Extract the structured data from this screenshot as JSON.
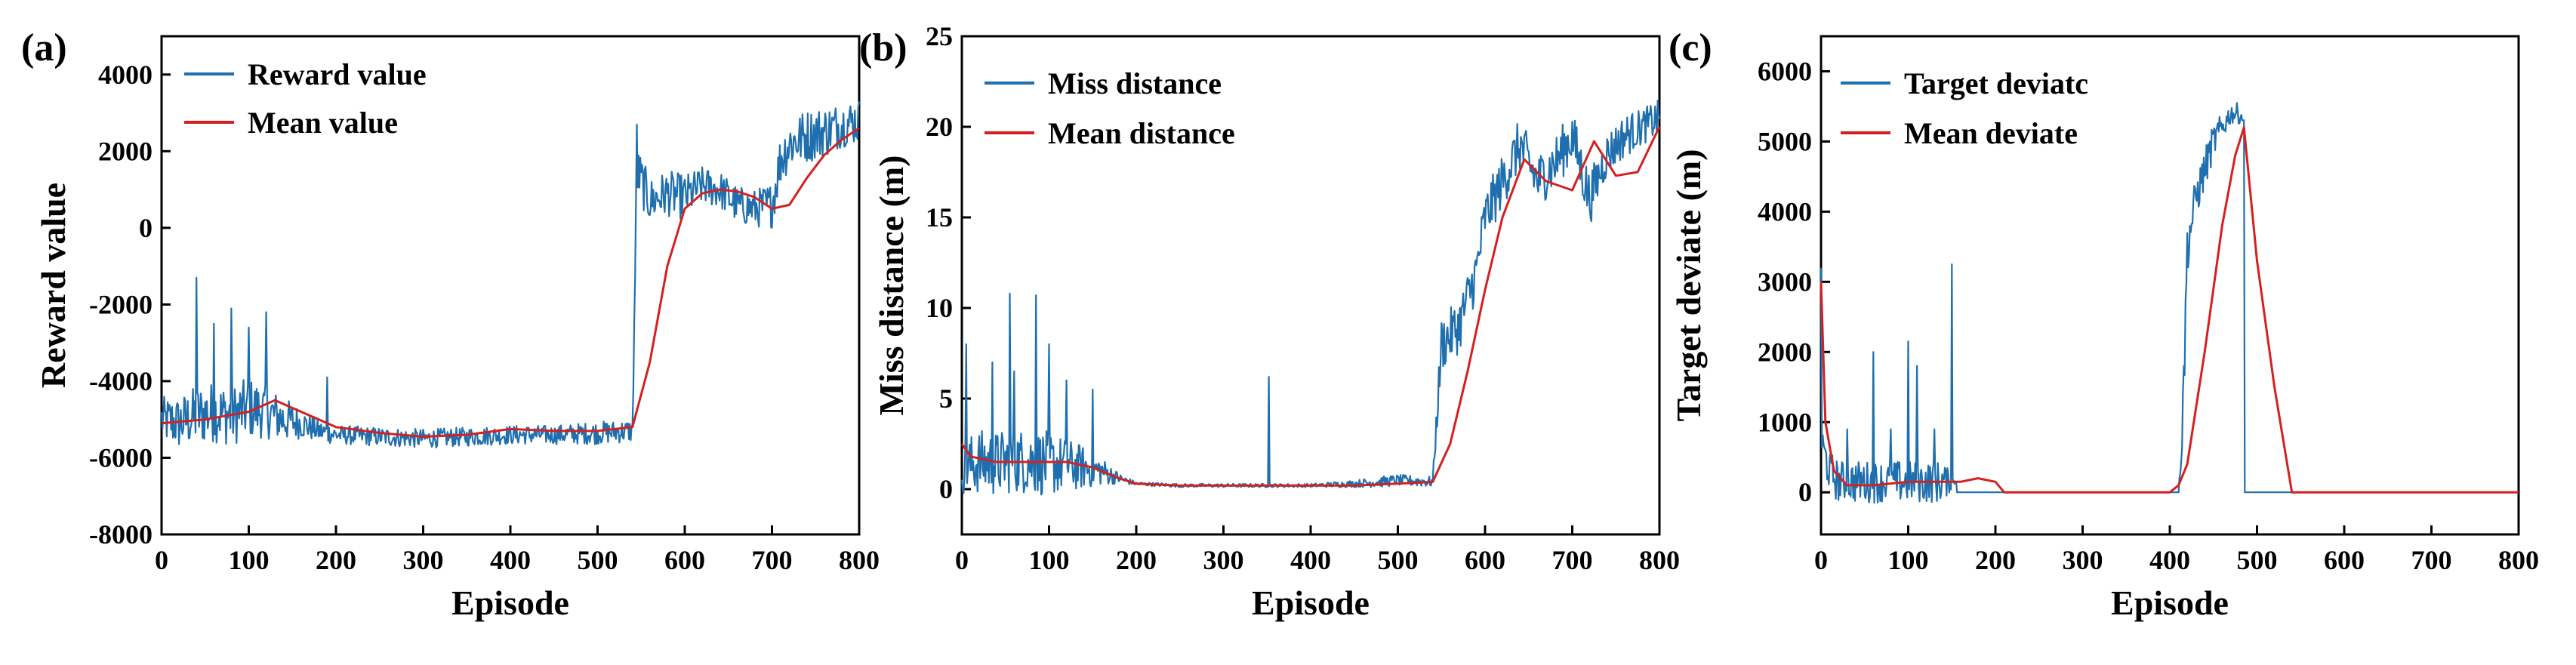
{
  "colors": {
    "series_primary": "#1f6fae",
    "series_mean": "#d42020",
    "axis": "#000000"
  },
  "chart_data": [
    {
      "type": "line",
      "panel_label": "(a)",
      "xlabel": "Episode",
      "ylabel": "Reward value",
      "xlim": [
        0,
        800
      ],
      "ylim": [
        -8000,
        5000
      ],
      "xticks": [
        "0",
        "100",
        "200",
        "300",
        "400",
        "500",
        "600",
        "700",
        "800"
      ],
      "yticks": [
        "-8000",
        "-6000",
        "-4000",
        "-2000",
        "0",
        "2000",
        "4000"
      ],
      "ytick_values": [
        -8000,
        -6000,
        -4000,
        -2000,
        0,
        2000,
        4000
      ],
      "legend_position": "top-left",
      "series": [
        {
          "name": "Reward value",
          "style": "noisy",
          "x": [
            0,
            20,
            40,
            60,
            80,
            100,
            120,
            140,
            160,
            180,
            200,
            250,
            300,
            350,
            400,
            450,
            500,
            540,
            545,
            560,
            580,
            600,
            620,
            640,
            660,
            680,
            700,
            710,
            720,
            740,
            760,
            780,
            800
          ],
          "values": [
            -5000,
            -5100,
            -4900,
            -4800,
            -4900,
            -4700,
            -4800,
            -5000,
            -5100,
            -5300,
            -5400,
            -5450,
            -5500,
            -5450,
            -5400,
            -5400,
            -5350,
            -5300,
            1500,
            700,
            900,
            800,
            1100,
            1000,
            600,
            500,
            600,
            1800,
            2200,
            2400,
            2500,
            2700,
            2800
          ],
          "noise": [
            600,
            700,
            800,
            800,
            800,
            800,
            700,
            600,
            400,
            300,
            250,
            250,
            250,
            250,
            250,
            250,
            300,
            300,
            700,
            600,
            600,
            600,
            500,
            500,
            500,
            500,
            600,
            700,
            700,
            700,
            700,
            600,
            600
          ],
          "spikes": [
            [
              40,
              -1300
            ],
            [
              60,
              -2500
            ],
            [
              80,
              -2100
            ],
            [
              100,
              -2600
            ],
            [
              120,
              -2200
            ],
            [
              190,
              -3900
            ],
            [
              545,
              2700
            ]
          ]
        },
        {
          "name": "Mean value",
          "style": "smooth",
          "x": [
            0,
            50,
            100,
            130,
            160,
            200,
            250,
            300,
            350,
            400,
            450,
            500,
            540,
            560,
            580,
            600,
            620,
            640,
            660,
            680,
            700,
            720,
            740,
            760,
            780,
            800
          ],
          "values": [
            -5100,
            -5000,
            -4800,
            -4500,
            -4800,
            -5200,
            -5350,
            -5450,
            -5400,
            -5250,
            -5300,
            -5300,
            -5200,
            -3500,
            -1000,
            500,
            900,
            1000,
            950,
            800,
            500,
            600,
            1300,
            1900,
            2300,
            2600
          ]
        }
      ]
    },
    {
      "type": "line",
      "panel_label": "(b)",
      "xlabel": "Episode",
      "ylabel": "Miss distance (m)",
      "xlim": [
        0,
        800
      ],
      "ylim": [
        -2.5,
        25
      ],
      "xticks": [
        "0",
        "100",
        "200",
        "300",
        "400",
        "500",
        "600",
        "700",
        "800"
      ],
      "yticks": [
        "0",
        "5",
        "10",
        "15",
        "20",
        "25"
      ],
      "ytick_values": [
        0,
        5,
        10,
        15,
        20,
        25
      ],
      "legend_position": "top-left",
      "series": [
        {
          "name": "Miss distance",
          "style": "noisy",
          "x": [
            0,
            20,
            40,
            60,
            80,
            100,
            120,
            140,
            160,
            180,
            200,
            250,
            300,
            350,
            400,
            450,
            480,
            500,
            540,
            550,
            570,
            590,
            600,
            620,
            640,
            660,
            680,
            700,
            720,
            740,
            760,
            780,
            800
          ],
          "values": [
            1.2,
            1.5,
            1.4,
            1.6,
            1.5,
            1.4,
            1.3,
            1.2,
            1.0,
            0.6,
            0.3,
            0.2,
            0.2,
            0.2,
            0.2,
            0.3,
            0.4,
            0.5,
            0.4,
            8.0,
            9.0,
            12.0,
            15.0,
            17.0,
            19.0,
            17.0,
            18.0,
            19.5,
            16.0,
            18.5,
            19.5,
            20.0,
            20.5
          ],
          "noise": [
            1.5,
            1.8,
            1.8,
            1.8,
            1.8,
            1.8,
            1.5,
            1.2,
            0.8,
            0.3,
            0.1,
            0.1,
            0.1,
            0.1,
            0.1,
            0.2,
            0.3,
            0.3,
            0.3,
            1.5,
            1.5,
            1.5,
            1.5,
            1.5,
            1.5,
            1.5,
            1.5,
            1.5,
            1.5,
            1.2,
            1.2,
            1.0,
            1.0
          ],
          "spikes": [
            [
              5,
              8.0
            ],
            [
              35,
              7.0
            ],
            [
              55,
              10.8
            ],
            [
              60,
              6.5
            ],
            [
              85,
              10.7
            ],
            [
              100,
              8.0
            ],
            [
              120,
              6.0
            ],
            [
              150,
              5.5
            ],
            [
              352,
              6.2
            ]
          ]
        },
        {
          "name": "Mean distance",
          "style": "smooth",
          "x": [
            0,
            10,
            40,
            80,
            120,
            150,
            180,
            200,
            250,
            300,
            350,
            400,
            450,
            500,
            540,
            560,
            580,
            600,
            620,
            645,
            670,
            700,
            725,
            750,
            775,
            800
          ],
          "values": [
            2.5,
            1.8,
            1.5,
            1.5,
            1.5,
            1.2,
            0.6,
            0.3,
            0.2,
            0.2,
            0.2,
            0.2,
            0.2,
            0.3,
            0.4,
            2.5,
            6.5,
            11.0,
            15.0,
            18.2,
            17.0,
            16.5,
            19.2,
            17.3,
            17.5,
            20.0
          ]
        }
      ]
    },
    {
      "type": "line",
      "panel_label": "(c)",
      "xlabel": "Episode",
      "ylabel": "Target deviate (m)",
      "xlim": [
        0,
        800
      ],
      "ylim": [
        -600,
        6500
      ],
      "xticks": [
        "0",
        "100",
        "200",
        "300",
        "400",
        "500",
        "600",
        "700",
        "800"
      ],
      "yticks": [
        "0",
        "1000",
        "2000",
        "3000",
        "4000",
        "5000",
        "6000"
      ],
      "ytick_values": [
        0,
        1000,
        2000,
        3000,
        4000,
        5000,
        6000
      ],
      "legend_position": "top-left",
      "series": [
        {
          "name": "Target deviatc",
          "style": "noisy",
          "x": [
            0,
            10,
            20,
            40,
            60,
            80,
            100,
            120,
            140,
            155,
            156,
            300,
            410,
            415,
            420,
            430,
            440,
            450,
            460,
            470,
            480,
            485,
            486,
            800
          ],
          "values": [
            700,
            300,
            150,
            150,
            150,
            150,
            150,
            150,
            150,
            150,
            0,
            0,
            0,
            1000,
            3500,
            4200,
            4600,
            5000,
            5200,
            5400,
            5400,
            5300,
            0,
            0
          ],
          "noise": [
            300,
            300,
            300,
            300,
            300,
            300,
            300,
            300,
            300,
            0,
            0,
            0,
            0,
            400,
            400,
            300,
            300,
            250,
            200,
            150,
            150,
            0,
            0,
            0
          ],
          "spikes": [
            [
              0,
              3200
            ],
            [
              30,
              900
            ],
            [
              60,
              2000
            ],
            [
              80,
              900
            ],
            [
              100,
              2150
            ],
            [
              110,
              1800
            ],
            [
              130,
              900
            ],
            [
              150,
              3250
            ],
            [
              415,
              1400
            ]
          ]
        },
        {
          "name": "Mean deviate",
          "style": "smooth",
          "x": [
            0,
            5,
            15,
            30,
            60,
            100,
            130,
            160,
            180,
            200,
            210,
            300,
            400,
            410,
            420,
            440,
            460,
            475,
            485,
            500,
            520,
            540,
            600,
            800
          ],
          "values": [
            3000,
            1000,
            300,
            100,
            100,
            150,
            150,
            150,
            200,
            150,
            0,
            0,
            0,
            100,
            400,
            2000,
            3800,
            4800,
            5200,
            3300,
            1500,
            0,
            0,
            0
          ]
        }
      ]
    }
  ]
}
